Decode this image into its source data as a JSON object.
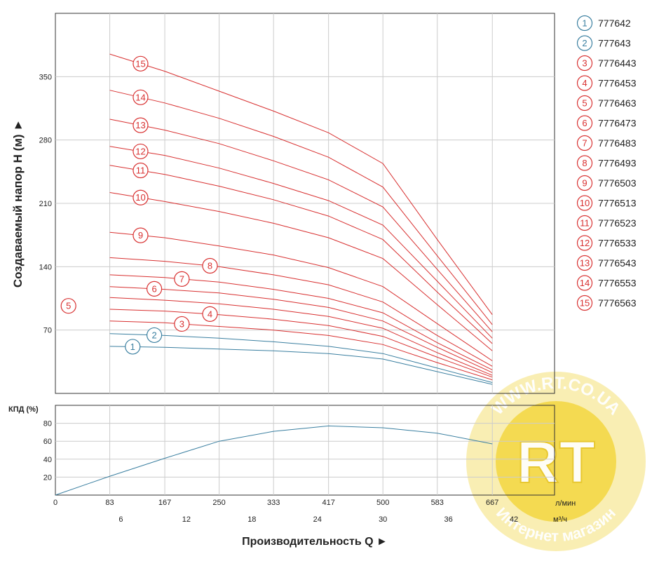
{
  "chart_data": [
    {
      "type": "line",
      "ylabel": "Создаваемый напор H (м) ►",
      "ylim": [
        0,
        420
      ],
      "yticks": [
        70,
        140,
        210,
        280,
        350
      ],
      "x": [
        83,
        167,
        250,
        333,
        417,
        500,
        583,
        667
      ],
      "grid": true,
      "legend_position": "right",
      "series": [
        {
          "name": "777642",
          "label": "1",
          "color": "#3a7fa0",
          "values": [
            52,
            51,
            49,
            47,
            44,
            38,
            24,
            10
          ]
        },
        {
          "name": "777643",
          "label": "2",
          "color": "#3a7fa0",
          "values": [
            66,
            64,
            61,
            57,
            52,
            44,
            28,
            12
          ]
        },
        {
          "name": "7776443",
          "label": "3",
          "color": "#d83030",
          "values": [
            80,
            78,
            74,
            70,
            64,
            54,
            34,
            15
          ]
        },
        {
          "name": "7776453",
          "label": "4",
          "color": "#d83030",
          "values": [
            93,
            91,
            87,
            82,
            75,
            63,
            40,
            18
          ]
        },
        {
          "name": "7776463",
          "label": "5",
          "color": "#d83030",
          "values": [
            106,
            103,
            99,
            93,
            85,
            72,
            45,
            20
          ]
        },
        {
          "name": "7776473",
          "label": "6",
          "color": "#d83030",
          "values": [
            118,
            115,
            111,
            104,
            95,
            80,
            51,
            23
          ]
        },
        {
          "name": "7776483",
          "label": "7",
          "color": "#d83030",
          "values": [
            131,
            128,
            123,
            115,
            105,
            89,
            56,
            26
          ]
        },
        {
          "name": "7776493",
          "label": "8",
          "color": "#d83030",
          "values": [
            150,
            146,
            140,
            131,
            120,
            101,
            64,
            30
          ]
        },
        {
          "name": "7776503",
          "label": "9",
          "color": "#d83030",
          "values": [
            178,
            172,
            163,
            153,
            139,
            118,
            77,
            36
          ]
        },
        {
          "name": "7776513",
          "label": "10",
          "color": "#d83030",
          "values": [
            222,
            212,
            201,
            188,
            172,
            149,
            98,
            47
          ]
        },
        {
          "name": "7776523",
          "label": "11",
          "color": "#d83030",
          "values": [
            252,
            242,
            229,
            214,
            196,
            170,
            112,
            55
          ]
        },
        {
          "name": "7776533",
          "label": "12",
          "color": "#d83030",
          "values": [
            273,
            263,
            249,
            232,
            213,
            186,
            124,
            61
          ]
        },
        {
          "name": "7776543",
          "label": "13",
          "color": "#d83030",
          "values": [
            303,
            291,
            276,
            257,
            236,
            206,
            137,
            68
          ]
        },
        {
          "name": "7776553",
          "label": "14",
          "color": "#d83030",
          "values": [
            335,
            321,
            304,
            284,
            261,
            228,
            152,
            76
          ]
        },
        {
          "name": "7776563",
          "label": "15",
          "color": "#d83030",
          "values": [
            375,
            356,
            334,
            312,
            288,
            254,
            170,
            87
          ]
        }
      ]
    },
    {
      "type": "line",
      "ylabel": "КПД (%)",
      "ylim": [
        0,
        100
      ],
      "yticks": [
        20,
        40,
        60,
        80
      ],
      "grid": true,
      "series": [
        {
          "color": "#3a7fa0",
          "x": [
            0,
            83,
            167,
            250,
            333,
            417,
            500,
            583,
            667
          ],
          "values": [
            0,
            21,
            41,
            60,
            71,
            77,
            75,
            69,
            57
          ]
        }
      ]
    }
  ],
  "x_axis": {
    "title": "Производительность Q ►",
    "lmin_ticks": [
      "0",
      "83",
      "167",
      "250",
      "333",
      "417",
      "500",
      "583",
      "667"
    ],
    "lmin_unit": "л/мин",
    "m3h_ticks": [
      "6",
      "12",
      "18",
      "24",
      "30",
      "36",
      "42"
    ],
    "m3h_unit": "м³/ч"
  },
  "watermark": {
    "url_text": "WWW.RT.CO.UA",
    "logo_text": "RT",
    "bottom_text": "Интернет магазин",
    "colors": {
      "outer": "#f7e89a",
      "inner": "#f3d640",
      "text": "#ffffff"
    }
  },
  "style": {
    "grid_color": "#cccccc",
    "axis_color": "#333333",
    "badge_fill": "#ffffff"
  }
}
